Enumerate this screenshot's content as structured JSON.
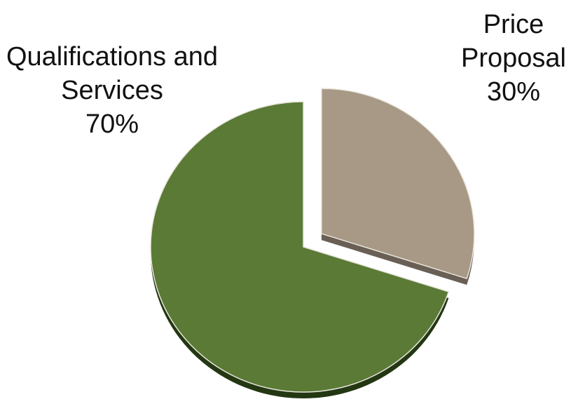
{
  "chart_data": {
    "type": "pie",
    "title": "",
    "categories": [
      "Qualifications and Services",
      "Price Proposal"
    ],
    "values": [
      70,
      30
    ],
    "series": [
      {
        "values": [
          70,
          30
        ]
      }
    ],
    "labels": [
      {
        "lines": [
          "Qualifications and",
          "Services",
          "70%"
        ]
      },
      {
        "lines": [
          "Price",
          "Proposal",
          "30%"
        ]
      }
    ],
    "exploded_slice": "Price Proposal",
    "colors": {
      "Qualifications and Services": "#5a7a36",
      "Qualifications and Services side": "#233713",
      "Price Proposal": "#a89886",
      "Price Proposal side": "#6a5f55",
      "slice_border": "#e8e5da"
    },
    "legend": false
  }
}
